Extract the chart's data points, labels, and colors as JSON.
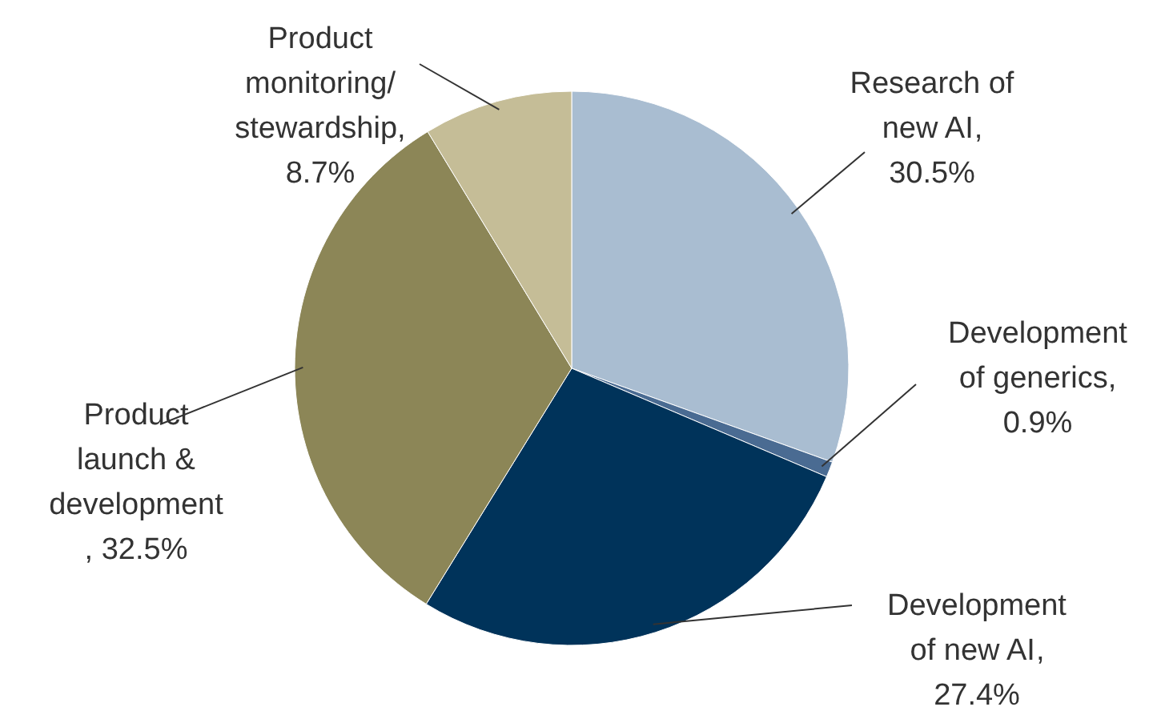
{
  "chart_data": {
    "type": "pie",
    "categories": [
      "Research of new AI",
      "Development of generics",
      "Development of new AI",
      "Product launch & development",
      "Product monitoring/stewardship"
    ],
    "values": [
      30.5,
      0.9,
      27.4,
      32.5,
      8.7
    ],
    "value_labels": [
      ", 30.5%",
      ", 0.9%",
      ", 27.4%",
      ", 32.5%",
      ", 8.7%"
    ],
    "colors": [
      "#a9bdd1",
      "#4a6b92",
      "#00335a",
      "#8c8657",
      "#c5bd97"
    ]
  }
}
